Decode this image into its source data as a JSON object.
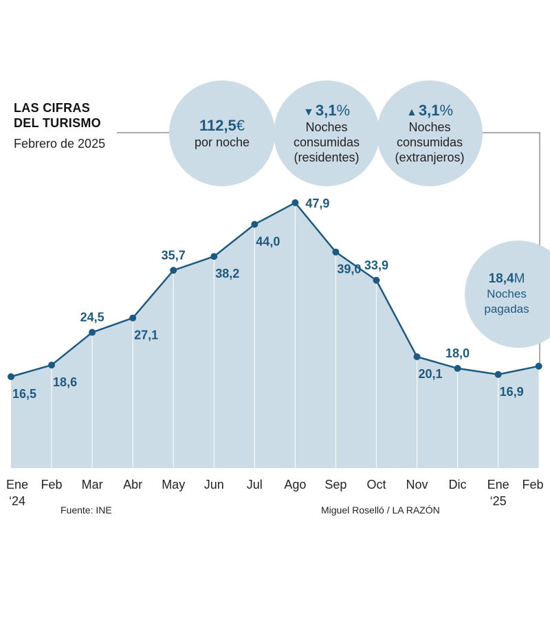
{
  "header": {
    "title_line1": "LAS CIFRAS",
    "title_line2": "DEL TURISMO",
    "subtitle": "Febrero de 2025"
  },
  "stats": [
    {
      "value": "112,5",
      "unit": "€",
      "arrow": "",
      "label1": "por noche",
      "label2": "",
      "label3": ""
    },
    {
      "value": "3,1",
      "unit": "%",
      "arrow": "▼",
      "label1": "Noches",
      "label2": "consumidas",
      "label3": "(residentes)"
    },
    {
      "value": "3,1",
      "unit": "%",
      "arrow": "▲",
      "label1": "Noches",
      "label2": "consumidas",
      "label3": "(extranjeros)"
    },
    {
      "value": "18,4",
      "unit": "M",
      "arrow": "",
      "label1": "Noches",
      "label2": "pagadas",
      "label3": ""
    }
  ],
  "footer": {
    "source": "Fuente: INE",
    "credit": "Miguel Roselló / LA RAZÓN"
  },
  "colors": {
    "line": "#1d5a82",
    "fill": "#ccdce6",
    "bubble": "#ccdce6"
  },
  "chart_data": {
    "type": "area",
    "categories": [
      "Ene",
      "Feb",
      "Mar",
      "Abr",
      "May",
      "Jun",
      "Jul",
      "Ago",
      "Sep",
      "Oct",
      "Nov",
      "Dic",
      "Ene",
      "Feb"
    ],
    "year_labels": [
      "‘24",
      "",
      "",
      "",
      "",
      "",
      "",
      "",
      "",
      "",
      "",
      "",
      "‘25",
      ""
    ],
    "values": [
      16.5,
      18.6,
      24.5,
      27.1,
      35.7,
      38.2,
      44.0,
      47.9,
      39.0,
      33.9,
      20.1,
      18.0,
      16.9,
      18.4
    ],
    "value_labels": [
      "16,5",
      "18,6",
      "24,5",
      "27,1",
      "35,7",
      "38,2",
      "44,0",
      "47,9",
      "39,0",
      "33,9",
      "20,1",
      "18,0",
      "16,9",
      ""
    ],
    "label_positions": [
      "below",
      "below",
      "above",
      "below",
      "above",
      "below",
      "below",
      "right",
      "below",
      "above",
      "below",
      "above",
      "below",
      "none"
    ],
    "title": "LAS CIFRAS DEL TURISMO",
    "xlabel": "",
    "ylabel": "",
    "ylim": [
      0,
      50
    ],
    "grid": false
  }
}
